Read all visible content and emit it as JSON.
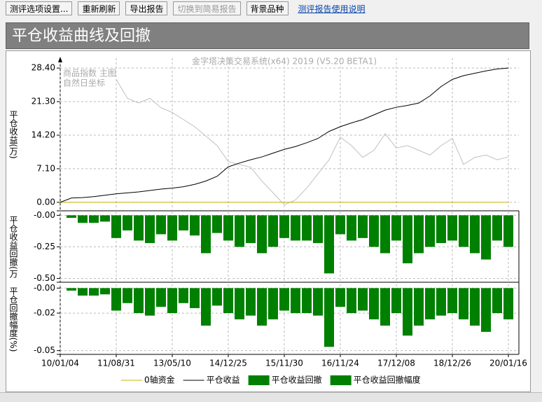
{
  "toolbar": {
    "buttons": [
      "测评选项设置...",
      "重新刷新",
      "导出报告",
      "切换到简易报告",
      "背景品种"
    ],
    "link": "测评报告使用说明"
  },
  "header": {
    "title": "平仓收益曲线及回撤"
  },
  "chart_data": [
    {
      "type": "line",
      "title": "金字塔决策交易系统(x64) 2019 (V5.20 BETA1)",
      "annotations": [
        "商品指数 主图",
        "自然日坐标"
      ],
      "y_label": "平仓收益(万)",
      "ylim": [
        -1.8,
        30.5
      ],
      "yticks": [
        {
          "value": 0,
          "label": "0.00"
        },
        {
          "value": 7.1,
          "label": "7.10"
        },
        {
          "value": 14.2,
          "label": "14.20"
        },
        {
          "value": 21.3,
          "label": "21.30"
        },
        {
          "value": 28.4,
          "label": "28.40"
        }
      ],
      "grid": true,
      "series": [
        {
          "name": "0轴资金",
          "color": "#c8b400",
          "values": [
            0,
            0,
            0,
            0,
            0,
            0,
            0,
            0,
            0,
            0,
            0,
            0,
            0,
            0,
            0,
            0,
            0,
            0,
            0,
            0,
            0,
            0,
            0,
            0,
            0,
            0,
            0,
            0,
            0,
            0,
            0,
            0,
            0,
            0,
            0,
            0,
            0,
            0,
            0,
            0,
            0
          ]
        },
        {
          "name": "平仓收益",
          "color": "#000000",
          "values": [
            0,
            0.9,
            1.0,
            1.2,
            1.5,
            1.8,
            2.0,
            2.2,
            2.5,
            2.8,
            3.0,
            3.3,
            3.8,
            4.5,
            5.5,
            7.5,
            8.3,
            9.0,
            9.6,
            10.4,
            11.2,
            11.8,
            12.6,
            13.5,
            15.0,
            16.0,
            16.8,
            17.5,
            18.5,
            19.5,
            20.1,
            20.5,
            21.0,
            22.5,
            24.5,
            26.0,
            26.8,
            27.3,
            27.8,
            28.2,
            28.4
          ]
        },
        {
          "color": "#c0c0c0",
          "values": [
            null,
            null,
            null,
            null,
            null,
            26,
            22,
            21,
            22,
            20,
            19,
            17.5,
            16,
            14,
            12,
            8.6,
            8,
            7.4,
            4.5,
            2,
            -0.5,
            0.5,
            3,
            6,
            9,
            13.8,
            12,
            9.5,
            11,
            14.5,
            11.5,
            12,
            11,
            10,
            12,
            13.5,
            8,
            9.5,
            10,
            9,
            9.6
          ]
        }
      ]
    },
    {
      "type": "bar",
      "y_label": "平仓收益回撤(万",
      "ylim": [
        -0.53,
        0.03
      ],
      "yticks": [
        {
          "value": 0,
          "label": "-0.00"
        },
        -0.25,
        {
          "value": -0.5,
          "label": "-0.50"
        }
      ],
      "grid": true,
      "series": [
        {
          "name": "平仓收益回撤",
          "color": "#008000",
          "values": [
            0,
            -0.02,
            -0.06,
            -0.06,
            -0.05,
            -0.18,
            -0.12,
            -0.2,
            -0.22,
            -0.15,
            -0.2,
            -0.12,
            -0.16,
            -0.3,
            -0.14,
            -0.2,
            -0.25,
            -0.22,
            -0.3,
            -0.25,
            -0.18,
            -0.2,
            -0.2,
            -0.22,
            -0.46,
            -0.15,
            -0.2,
            -0.18,
            -0.25,
            -0.3,
            -0.2,
            -0.38,
            -0.3,
            -0.25,
            -0.22,
            -0.2,
            -0.25,
            -0.3,
            -0.35,
            -0.2,
            -0.25
          ]
        }
      ]
    },
    {
      "type": "bar",
      "y_label": "平仓回撤幅度(%)",
      "ylim": [
        -0.053,
        0.003
      ],
      "yticks": [
        {
          "value": 0,
          "label": "-0.00"
        },
        -0.02,
        -0.05
      ],
      "grid": true,
      "categories": [
        "10/01/04",
        null,
        null,
        null,
        null,
        "11/08/31",
        null,
        null,
        null,
        null,
        "13/05/10",
        null,
        null,
        null,
        null,
        "14/12/25",
        null,
        null,
        null,
        null,
        "15/11/30",
        null,
        null,
        null,
        null,
        "16/11/24",
        null,
        null,
        null,
        null,
        "17/12/08",
        null,
        null,
        null,
        null,
        "18/12/26",
        null,
        null,
        null,
        null,
        "20/01/16"
      ],
      "series": [
        {
          "name": "平仓收益回撤幅度",
          "color": "#008000",
          "values": [
            0,
            -0.002,
            -0.006,
            -0.006,
            -0.005,
            -0.018,
            -0.012,
            -0.02,
            -0.022,
            -0.015,
            -0.02,
            -0.012,
            -0.016,
            -0.03,
            -0.014,
            -0.02,
            -0.025,
            -0.022,
            -0.03,
            -0.025,
            -0.018,
            -0.02,
            -0.02,
            -0.022,
            -0.047,
            -0.015,
            -0.02,
            -0.018,
            -0.025,
            -0.03,
            -0.02,
            -0.038,
            -0.03,
            -0.025,
            -0.022,
            -0.02,
            -0.025,
            -0.03,
            -0.035,
            -0.02,
            -0.025
          ]
        }
      ]
    }
  ]
}
